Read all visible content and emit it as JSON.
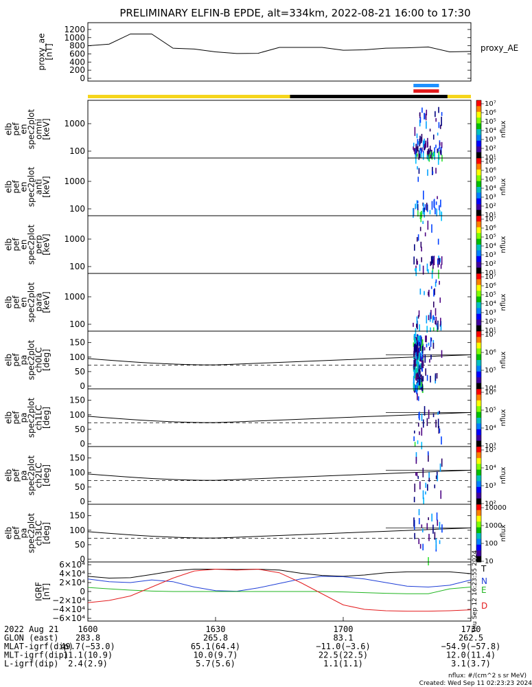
{
  "title": "PRELIMINARY ELFIN-B EPDE, alt=334km, 2022-08-21 16:00 to 17:30",
  "chart_data": [
    {
      "type": "line",
      "name": "proxy_ae",
      "ylabel": [
        "proxy_ae",
        "[nT]"
      ],
      "legend": "proxy_AE",
      "yticks": [
        "1200",
        "1000",
        "800",
        "600",
        "400",
        "200",
        "0"
      ],
      "ylim": [
        0,
        1300
      ],
      "x_minutes": [
        0,
        5,
        10,
        15,
        20,
        25,
        30,
        35,
        40,
        45,
        50,
        55,
        60,
        65,
        70,
        75,
        80,
        85,
        90
      ],
      "values": [
        800,
        840,
        1090,
        1090,
        740,
        720,
        650,
        610,
        615,
        760,
        760,
        760,
        690,
        700,
        740,
        750,
        770,
        650,
        660
      ]
    },
    {
      "type": "line",
      "name": "orbit_bar",
      "segments": [
        {
          "from_min": 0,
          "to_min": 47.5,
          "color": "#f5d51c"
        },
        {
          "from_min": 47.5,
          "to_min": 84.5,
          "color": "#000000"
        },
        {
          "from_min": 84.5,
          "to_min": 90,
          "color": "#f5d51c"
        }
      ],
      "markers": [
        {
          "from_min": 76.5,
          "to_min": 82.5,
          "color": "#1e90ff"
        },
        {
          "from_min": 76.5,
          "to_min": 82.5,
          "color": "#e31a1c"
        }
      ]
    },
    {
      "type": "heatmap",
      "name": "en_omni",
      "ylabel": [
        "elb",
        "pef",
        "en",
        "spec2plot",
        "omni",
        "[keV]"
      ],
      "yticks": [
        "1000",
        "100"
      ],
      "colorbar": {
        "labels": [
          "10⁷",
          "10⁶",
          "10⁵",
          "10⁴",
          "10³",
          "10²",
          "10¹"
        ],
        "unit": "nflux"
      }
    },
    {
      "type": "heatmap",
      "name": "en_anti",
      "ylabel": [
        "elb",
        "pef",
        "en",
        "spec2plot",
        "anti",
        "[keV]"
      ],
      "yticks": [
        "1000",
        "100"
      ],
      "colorbar": {
        "labels": [
          "10⁷",
          "10⁶",
          "10⁵",
          "10⁴",
          "10³",
          "10²",
          "10¹"
        ],
        "unit": "nflux"
      }
    },
    {
      "type": "heatmap",
      "name": "en_perp",
      "ylabel": [
        "elb",
        "pef",
        "en",
        "spec2plot",
        "perp",
        "[keV]"
      ],
      "yticks": [
        "1000",
        "100"
      ],
      "colorbar": {
        "labels": [
          "10⁷",
          "10⁶",
          "10⁵",
          "10⁴",
          "10³",
          "10²",
          "10¹"
        ],
        "unit": "nflux"
      }
    },
    {
      "type": "heatmap",
      "name": "en_para",
      "ylabel": [
        "elb",
        "pef",
        "en",
        "spec2plot",
        "para",
        "[keV]"
      ],
      "yticks": [
        "1000",
        "100"
      ],
      "colorbar": {
        "labels": [
          "10⁷",
          "10⁶",
          "10⁵",
          "10⁴",
          "10³",
          "10²",
          "10¹"
        ],
        "unit": "nflux"
      }
    },
    {
      "type": "heatmap",
      "name": "pa_ch0",
      "ylabel": [
        "elb",
        "pef",
        "pa",
        "spec2plot",
        "ch0LC",
        "[deg]"
      ],
      "yticks": [
        "150",
        "100",
        "50",
        "0"
      ],
      "colorbar": {
        "labels": [
          "10⁷",
          "10⁶",
          "10⁵",
          "10⁴"
        ],
        "unit": "nflux"
      }
    },
    {
      "type": "heatmap",
      "name": "pa_ch1",
      "ylabel": [
        "elb",
        "pef",
        "pa",
        "spec2plot",
        "ch1LC",
        "[deg]"
      ],
      "yticks": [
        "150",
        "100",
        "50",
        "0"
      ],
      "colorbar": {
        "labels": [
          "10⁶",
          "10⁵",
          "10⁴",
          "10³"
        ],
        "unit": "nflux"
      }
    },
    {
      "type": "heatmap",
      "name": "pa_ch2",
      "ylabel": [
        "elb",
        "pef",
        "pa",
        "spec2plot",
        "ch2LC",
        "[deg]"
      ],
      "yticks": [
        "150",
        "100",
        "50",
        "0"
      ],
      "colorbar": {
        "labels": [
          "10⁵",
          "10⁴",
          "10³",
          "10²"
        ],
        "unit": "nflux"
      }
    },
    {
      "type": "heatmap",
      "name": "pa_ch3",
      "ylabel": [
        "elb",
        "pef",
        "pa",
        "spec2plot",
        "ch3LC",
        "[deg]"
      ],
      "yticks": [
        "150",
        "100",
        "50",
        "0"
      ],
      "colorbar": {
        "labels": [
          "10000",
          "1000",
          "100",
          "10"
        ],
        "unit": "nflux"
      }
    },
    {
      "type": "line",
      "name": "igrf",
      "ylabel": [
        "IGRF",
        "[nT]"
      ],
      "yticks": [
        "6×10⁴",
        "4×10⁴",
        "2×10⁴",
        "0",
        "−2×10⁴",
        "−4×10⁴",
        "−6×10⁴"
      ],
      "ylim": [
        -60000,
        60000
      ],
      "side_text": "Thu Sep 12 16:23:55 2024",
      "series": [
        {
          "name": "T",
          "color": "#000000",
          "x_minutes": [
            0,
            5,
            10,
            15,
            20,
            25,
            30,
            35,
            40,
            45,
            50,
            55,
            60,
            65,
            70,
            75,
            80,
            85,
            90
          ],
          "values": [
            34000,
            30000,
            31000,
            38000,
            46000,
            50000,
            50000,
            49500,
            50000,
            48000,
            41000,
            36000,
            34000,
            37000,
            42000,
            44000,
            44000,
            44000,
            40000
          ]
        },
        {
          "name": "N",
          "color": "#1c3cd6",
          "x_minutes": [
            0,
            5,
            10,
            15,
            20,
            25,
            30,
            35,
            40,
            45,
            50,
            55,
            60,
            65,
            70,
            75,
            80,
            85,
            90
          ],
          "values": [
            28000,
            22000,
            20000,
            26000,
            22000,
            10000,
            2000,
            500,
            8000,
            18000,
            28000,
            34000,
            33000,
            28000,
            20000,
            12000,
            10000,
            14000,
            26000
          ]
        },
        {
          "name": "E",
          "color": "#1fb51f",
          "x_minutes": [
            0,
            5,
            10,
            15,
            20,
            25,
            30,
            35,
            40,
            45,
            50,
            55,
            60,
            65,
            70,
            75,
            80,
            85,
            90
          ],
          "values": [
            9000,
            6000,
            3000,
            1000,
            0,
            0,
            0,
            0,
            0,
            0,
            0,
            0,
            -1000,
            -2500,
            -4000,
            -5000,
            -5000,
            6000,
            10000
          ]
        },
        {
          "name": "D",
          "color": "#e31a1c",
          "x_minutes": [
            0,
            5,
            10,
            15,
            20,
            25,
            30,
            35,
            40,
            45,
            50,
            55,
            60,
            65,
            70,
            75,
            80,
            85,
            90
          ],
          "values": [
            -25000,
            -20000,
            -10000,
            10000,
            30000,
            46000,
            50000,
            48000,
            50000,
            42000,
            20000,
            -5000,
            -30000,
            -40000,
            -43000,
            -44000,
            -44000,
            -43000,
            -41000
          ]
        }
      ]
    }
  ],
  "xaxis": {
    "time_ticks": [
      "1600",
      "1630",
      "1700",
      "1730"
    ],
    "rows": [
      {
        "label": "2022 Aug 21",
        "values": [
          "1600",
          "1630",
          "1700",
          "1730"
        ]
      },
      {
        "label": "GLON (east)",
        "values": [
          "283.8",
          "265.8",
          "83.1",
          "262.5"
        ]
      },
      {
        "label": "MLAT-igrf(dip)",
        "values": [
          "49.7(−53.0)",
          "65.1(64.4)",
          "−11.0(−3.6)",
          "−54.9(−57.8)"
        ]
      },
      {
        "label": "MLT-igrf(dip)",
        "values": [
          "11.1(10.9)",
          "10.0(9.7)",
          "22.5(22.5)",
          "12.0(11.4)"
        ]
      },
      {
        "label": "L-igrf(dip)",
        "values": [
          "2.4(2.9)",
          "5.7(5.6)",
          "1.1(1.1)",
          "3.1(3.7)"
        ]
      }
    ]
  },
  "footer": {
    "units": "nflux: #/(cm^2 s sr MeV)",
    "created": "Created: Wed Sep 11 02:23:23 2024"
  }
}
